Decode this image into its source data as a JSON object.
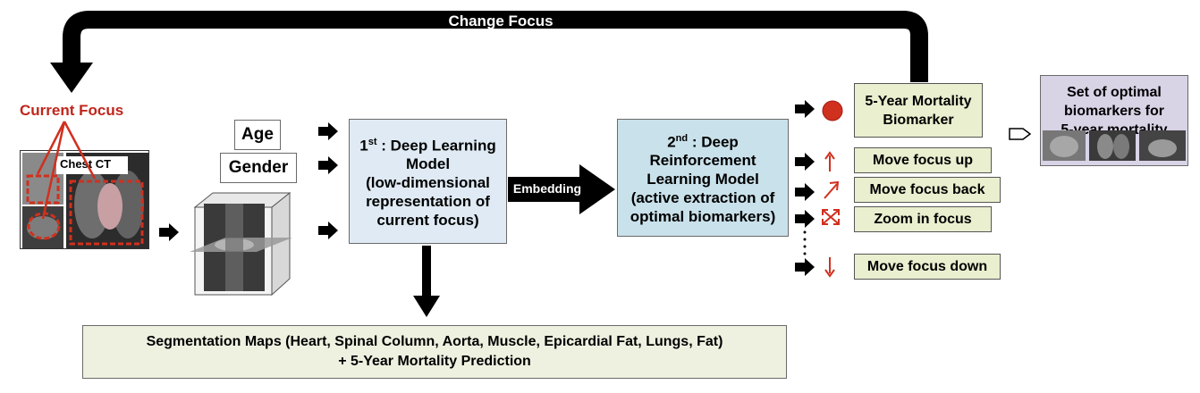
{
  "loop": {
    "label": "Change Focus"
  },
  "current_focus": {
    "label": "Current Focus",
    "ct_label": "Chest CT"
  },
  "inputs": {
    "age": "Age",
    "gender": "Gender"
  },
  "model1": {
    "line1": "1",
    "sup": "st",
    "line1b": " : Deep Learning",
    "rest": "Model\n(low-dimensional\nrepresentation of\ncurrent focus)"
  },
  "embedding": {
    "label": "Embedding"
  },
  "model2": {
    "line1": "2",
    "sup": "nd",
    "line1b": " : Deep",
    "rest": "Reinforcement\nLearning Model\n(active extraction of\noptimal biomarkers)"
  },
  "actions": {
    "biomarker": "5-Year Mortality\nBiomarker",
    "up": "Move focus up",
    "back": "Move focus back",
    "zoom": "Zoom in focus",
    "down": "Move focus down"
  },
  "result": {
    "label": "Set of optimal\nbiomarkers for\n5-year mortality"
  },
  "segmentation": {
    "line1": "Segmentation Maps (Heart, Spinal Column, Aorta, Muscle, Epicardial Fat, Lungs, Fat)",
    "line2": "+ 5-Year Mortality Prediction"
  },
  "colors": {
    "red": "#d0301e",
    "black": "#000000",
    "blue_box": "#dfeaf4",
    "blue_box2": "#c9e1ea",
    "green_box": "#e9efcf",
    "seg_box": "#eef1e0",
    "purple_box": "#d9d3e6"
  }
}
